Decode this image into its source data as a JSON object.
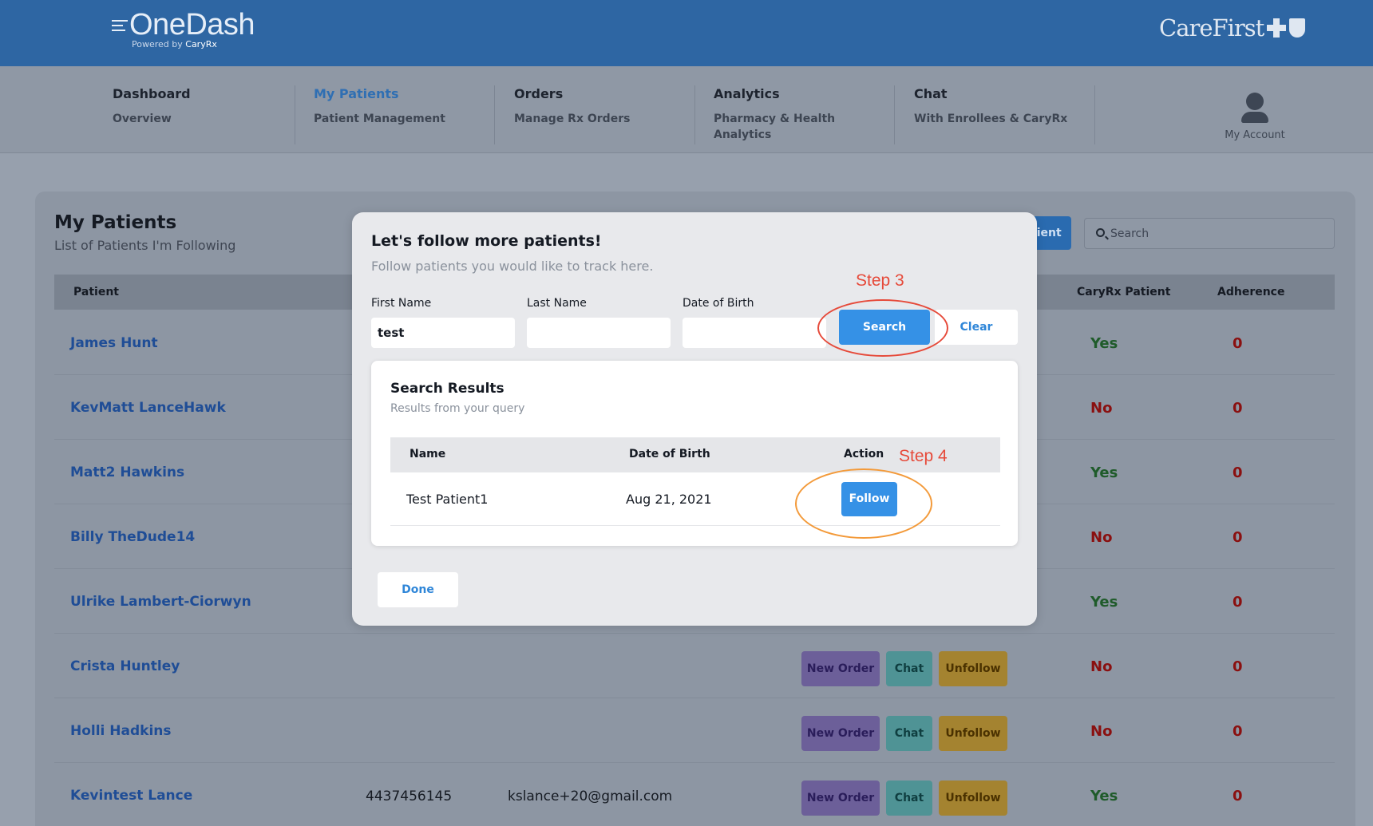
{
  "brand": {
    "logo_text": "OneDash",
    "logo_sub_prefix": "Powered by",
    "logo_sub_brand": "CaryRx",
    "partner": "CareFirst"
  },
  "nav": [
    {
      "title": "Dashboard",
      "sub": "Overview"
    },
    {
      "title": "My Patients",
      "sub": "Patient Management"
    },
    {
      "title": "Orders",
      "sub": "Manage Rx Orders"
    },
    {
      "title": "Analytics",
      "sub": "Pharmacy & Health Analytics"
    },
    {
      "title": "Chat",
      "sub": "With Enrollees & CaryRx"
    }
  ],
  "account_label": "My Account",
  "page": {
    "title": "My Patients",
    "subtitle": "List of Patients I'm Following",
    "add_button_partial": "tient",
    "search_placeholder": "Search"
  },
  "table": {
    "headers": {
      "patient": "Patient",
      "cary": "CaryRx Patient",
      "adherence": "Adherence"
    },
    "actions": {
      "new_order": "New Order",
      "chat": "Chat",
      "unfollow": "Unfollow"
    },
    "rows": [
      {
        "name": "James Hunt",
        "phone": "",
        "email": "",
        "cary": "Yes",
        "adherence": "0"
      },
      {
        "name": "KevMatt LanceHawk",
        "phone": "",
        "email": "",
        "cary": "No",
        "adherence": "0"
      },
      {
        "name": "Matt2 Hawkins",
        "phone": "",
        "email": "",
        "cary": "Yes",
        "adherence": "0"
      },
      {
        "name": "Billy TheDude14",
        "phone": "",
        "email": "",
        "cary": "No",
        "adherence": "0"
      },
      {
        "name": "Ulrike Lambert-Ciorwyn",
        "phone": "",
        "email": "",
        "cary": "Yes",
        "adherence": "0"
      },
      {
        "name": "Crista Huntley",
        "phone": "",
        "email": "",
        "cary": "No",
        "adherence": "0"
      },
      {
        "name": "Holli Hadkins",
        "phone": "",
        "email": "",
        "cary": "No",
        "adherence": "0"
      },
      {
        "name": "Kevintest Lance",
        "phone": "4437456145",
        "email": "kslance+20@gmail.com",
        "cary": "Yes",
        "adherence": "0"
      }
    ]
  },
  "modal": {
    "title": "Let's follow more patients!",
    "subtitle": "Follow patients you would like to track here.",
    "first_name_label": "First Name",
    "first_name_value": "test",
    "last_name_label": "Last Name",
    "last_name_value": "",
    "dob_label": "Date of Birth",
    "dob_value": "",
    "search_button": "Search",
    "clear_button": "Clear",
    "results": {
      "title": "Search Results",
      "subtitle": "Results from your query",
      "headers": {
        "name": "Name",
        "dob": "Date of Birth",
        "action": "Action"
      },
      "rows": [
        {
          "name": "Test Patient1",
          "dob": "Aug 21, 2021",
          "action": "Follow"
        }
      ]
    },
    "done_button": "Done"
  },
  "annotations": {
    "step3": "Step 3",
    "step4": "Step 4",
    "step3_color": "#e64a3a",
    "step4_color": "#f39a3a"
  }
}
